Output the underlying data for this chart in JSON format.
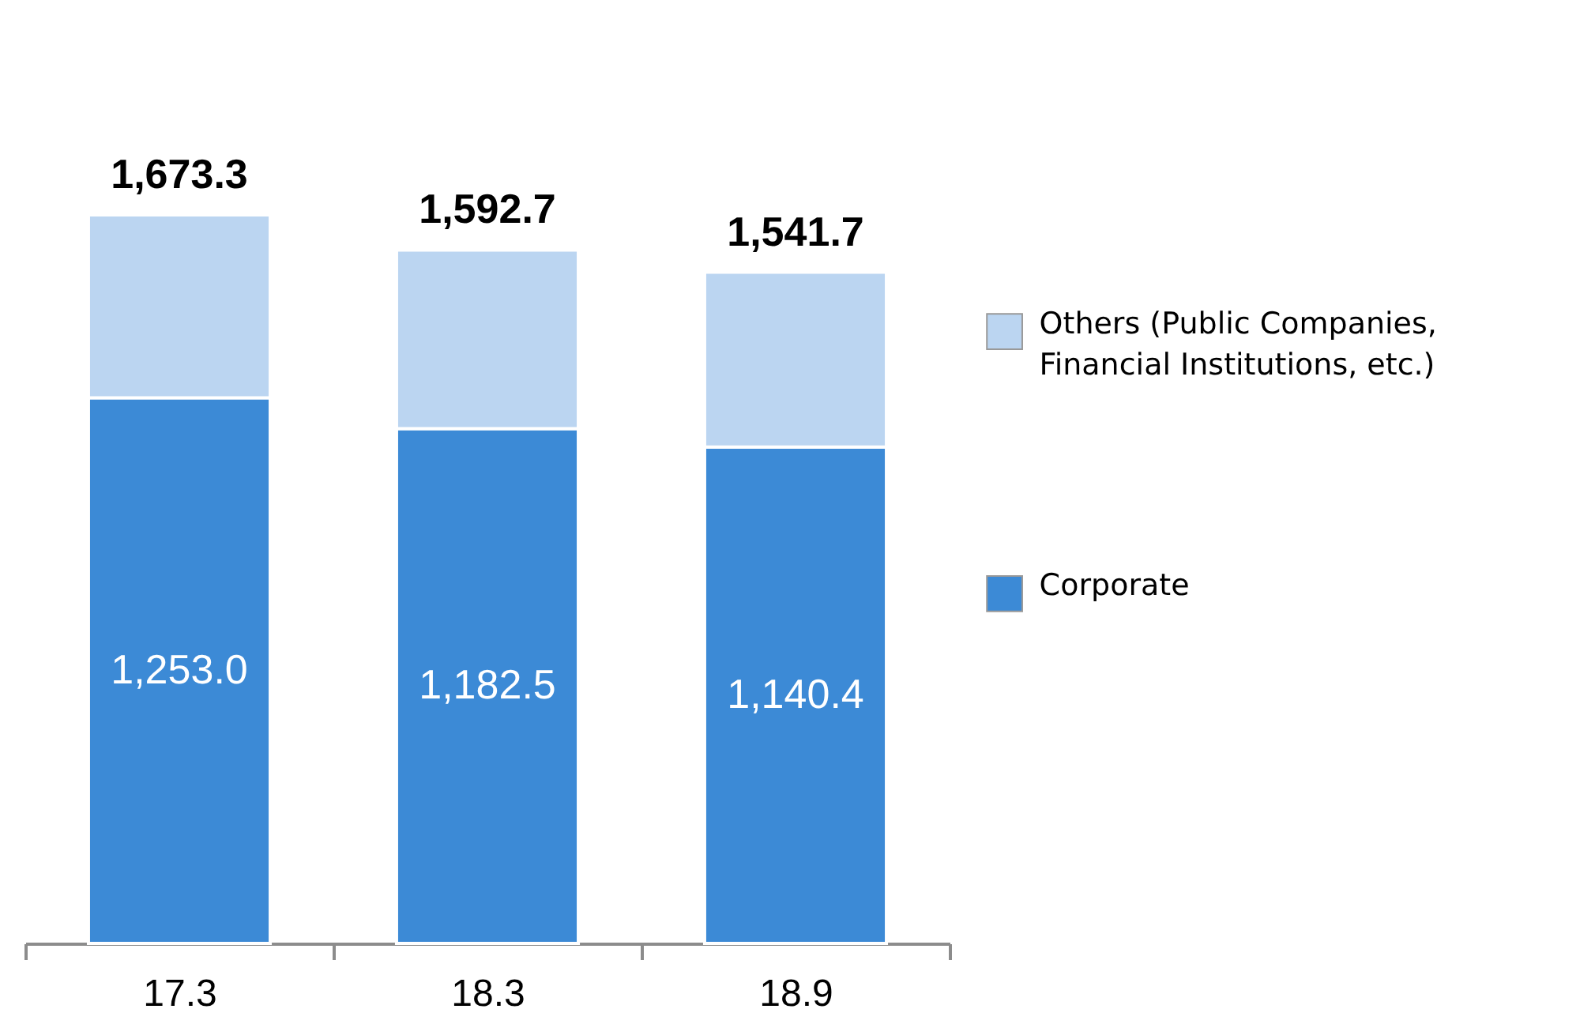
{
  "chart_data": {
    "type": "bar",
    "stacked": true,
    "categories": [
      "17.3",
      "18.3",
      "18.9"
    ],
    "series": [
      {
        "name": "Corporate",
        "color": "#3c8ad6",
        "values": [
          1253.0,
          1182.5,
          1140.4
        ],
        "value_labels": [
          "1,253.0",
          "1,182.5",
          "1,140.4"
        ]
      },
      {
        "name": "Others (Public Companies, Financial Institutions, etc.)",
        "color": "#bbd5f1",
        "values": [
          420.3,
          410.2,
          401.3
        ]
      }
    ],
    "totals": [
      "1,673.3",
      "1,592.7",
      "1,541.7"
    ],
    "tick_labels": "x",
    "grid": false,
    "legend": "right"
  }
}
